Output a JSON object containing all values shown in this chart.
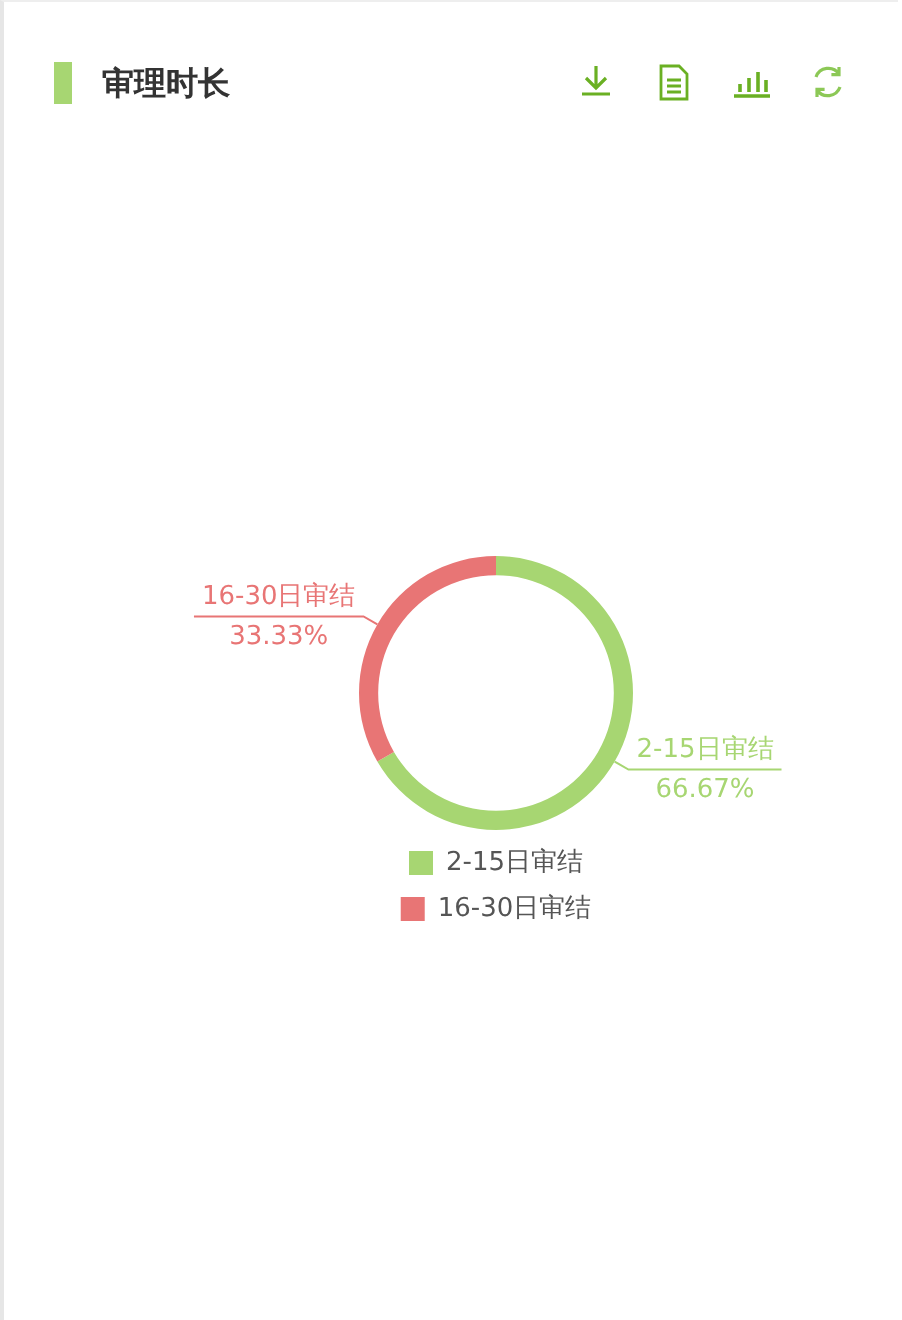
{
  "chart_data": {
    "type": "donut",
    "title": "审理时长",
    "categories": [
      "2-15日审结",
      "16-30日审结"
    ],
    "values": [
      66.67,
      33.33
    ],
    "colors": [
      "#a7d672",
      "#e87575"
    ],
    "value_labels": [
      "66.67%",
      "33.33%"
    ],
    "legend": "bottom"
  }
}
